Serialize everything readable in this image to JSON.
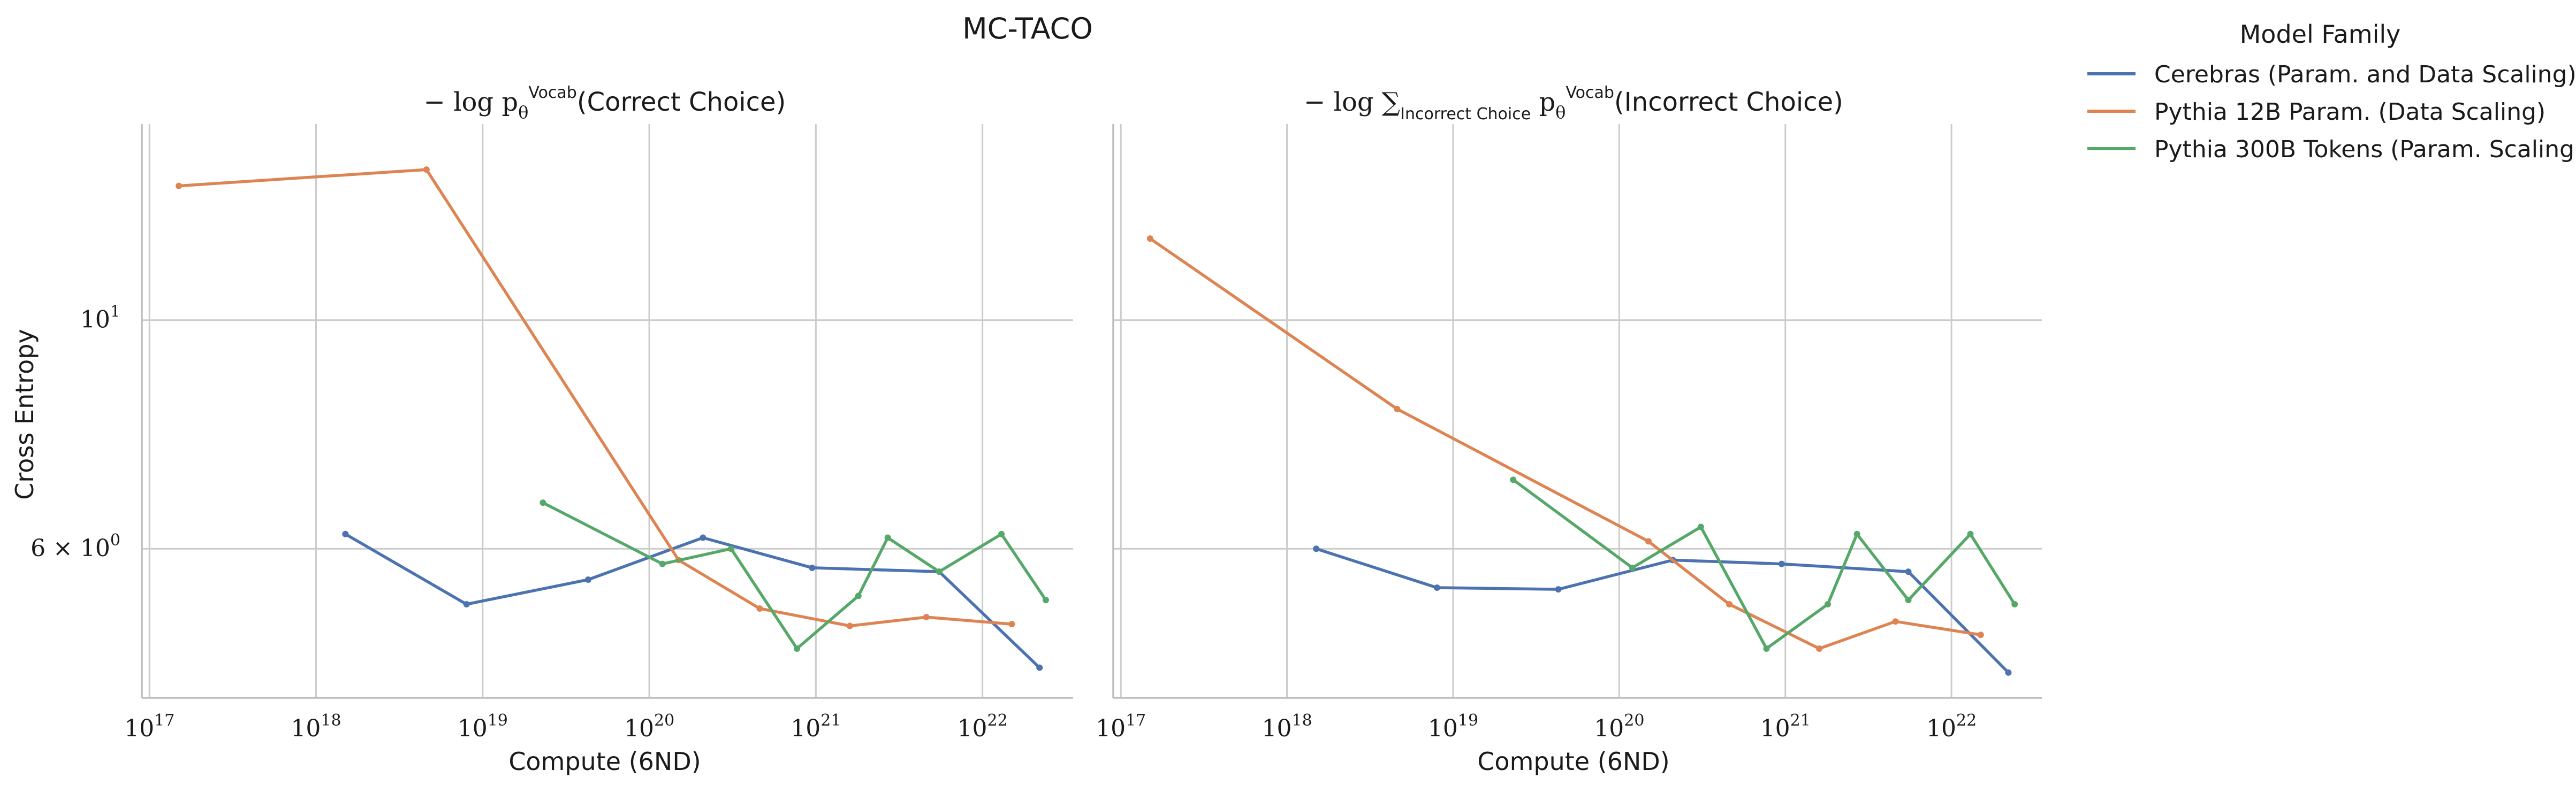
{
  "figure_title": "MC-TACO",
  "legend": {
    "title": "Model Family",
    "entries": [
      {
        "label": "Cerebras (Param. and Data Scaling)",
        "color": "#4c72b0"
      },
      {
        "label": "Pythia 12B Param. (Data Scaling)",
        "color": "#dd8452"
      },
      {
        "label": "Pythia 300B Tokens (Param. Scaling)",
        "color": "#55a868"
      }
    ]
  },
  "chart_data": [
    {
      "type": "line",
      "title_prefix": "− log p",
      "title_sub": "θ",
      "title_sup": "Vocab",
      "title_suffix": "(Correct Choice)",
      "xlabel": "Compute (6ND)",
      "ylabel": "Cross Entropy",
      "xscale": "log",
      "yscale": "log",
      "xlim": [
        9e+16,
        3.5e+22
      ],
      "ylim": [
        4.3,
        15.5
      ],
      "xticks": [
        {
          "value": 1e+17,
          "label": "10",
          "exp": "17"
        },
        {
          "value": 1e+18,
          "label": "10",
          "exp": "18"
        },
        {
          "value": 1e+19,
          "label": "10",
          "exp": "19"
        },
        {
          "value": 1e+20,
          "label": "10",
          "exp": "20"
        },
        {
          "value": 1e+21,
          "label": "10",
          "exp": "21"
        },
        {
          "value": 1e+22,
          "label": "10",
          "exp": "22"
        }
      ],
      "yticks": [
        {
          "value": 10,
          "label": "10",
          "exp": "1"
        },
        {
          "value": 6,
          "label": "6 × 10",
          "exp": "0"
        }
      ],
      "grid": true,
      "series": [
        {
          "name": "Cerebras (Param. and Data Scaling)",
          "color": "#4c72b0",
          "points": [
            [
              1.5e+18,
              6.2
            ],
            [
              8e+18,
              5.3
            ],
            [
              4.3e+19,
              5.6
            ],
            [
              2.1e+20,
              6.15
            ],
            [
              9.5e+20,
              5.75
            ],
            [
              5.5e+21,
              5.7
            ],
            [
              2.2e+22,
              4.6
            ]
          ]
        },
        {
          "name": "Pythia 12B Param. (Data Scaling)",
          "color": "#dd8452",
          "points": [
            [
              1.5e+17,
              13.5
            ],
            [
              4.6e+18,
              14.0
            ],
            [
              1.5e+20,
              5.85
            ],
            [
              4.6e+20,
              5.25
            ],
            [
              1.6e+21,
              5.05
            ],
            [
              4.6e+21,
              5.15
            ],
            [
              1.5e+22,
              5.07
            ]
          ]
        },
        {
          "name": "Pythia 300B Tokens (Param. Scaling)",
          "color": "#55a868",
          "points": [
            [
              2.3e+19,
              6.65
            ],
            [
              1.2e+20,
              5.8
            ],
            [
              3.1e+20,
              6.0
            ],
            [
              7.7e+20,
              4.8
            ],
            [
              1.8e+21,
              5.4
            ],
            [
              2.7e+21,
              6.15
            ],
            [
              5.5e+21,
              5.7
            ],
            [
              1.3e+22,
              6.2
            ],
            [
              2.4e+22,
              5.35
            ]
          ]
        }
      ]
    },
    {
      "type": "line",
      "title_prefix": "− log ∑",
      "title_sum_sub": "Incorrect Choice",
      "title_mid": " p",
      "title_sub": "θ",
      "title_sup": "Vocab",
      "title_suffix": "(Incorrect Choice)",
      "xlabel": "Compute (6ND)",
      "xscale": "log",
      "yscale": "log",
      "xlim": [
        9e+16,
        3.5e+22
      ],
      "ylim": [
        4.3,
        15.5
      ],
      "xticks": [
        {
          "value": 1e+17,
          "label": "10",
          "exp": "17"
        },
        {
          "value": 1e+18,
          "label": "10",
          "exp": "18"
        },
        {
          "value": 1e+19,
          "label": "10",
          "exp": "19"
        },
        {
          "value": 1e+20,
          "label": "10",
          "exp": "20"
        },
        {
          "value": 1e+21,
          "label": "10",
          "exp": "21"
        },
        {
          "value": 1e+22,
          "label": "10",
          "exp": "22"
        }
      ],
      "grid": true,
      "series": [
        {
          "name": "Cerebras (Param. and Data Scaling)",
          "color": "#4c72b0",
          "points": [
            [
              1.5e+18,
              6.0
            ],
            [
              8e+18,
              5.5
            ],
            [
              4.3e+19,
              5.48
            ],
            [
              2.1e+20,
              5.85
            ],
            [
              9.5e+20,
              5.8
            ],
            [
              5.5e+21,
              5.7
            ],
            [
              2.2e+22,
              4.55
            ]
          ]
        },
        {
          "name": "Pythia 12B Param. (Data Scaling)",
          "color": "#dd8452",
          "points": [
            [
              1.5e+17,
              12.0
            ],
            [
              4.6e+18,
              8.2
            ],
            [
              1.5e+20,
              6.1
            ],
            [
              4.6e+20,
              5.3
            ],
            [
              1.6e+21,
              4.8
            ],
            [
              4.6e+21,
              5.1
            ],
            [
              1.5e+22,
              4.95
            ]
          ]
        },
        {
          "name": "Pythia 300B Tokens (Param. Scaling)",
          "color": "#55a868",
          "points": [
            [
              2.3e+19,
              7.0
            ],
            [
              1.2e+20,
              5.75
            ],
            [
              3.1e+20,
              6.3
            ],
            [
              7.7e+20,
              4.8
            ],
            [
              1.8e+21,
              5.3
            ],
            [
              2.7e+21,
              6.2
            ],
            [
              5.5e+21,
              5.35
            ],
            [
              1.3e+22,
              6.2
            ],
            [
              2.4e+22,
              5.3
            ]
          ]
        }
      ]
    }
  ]
}
